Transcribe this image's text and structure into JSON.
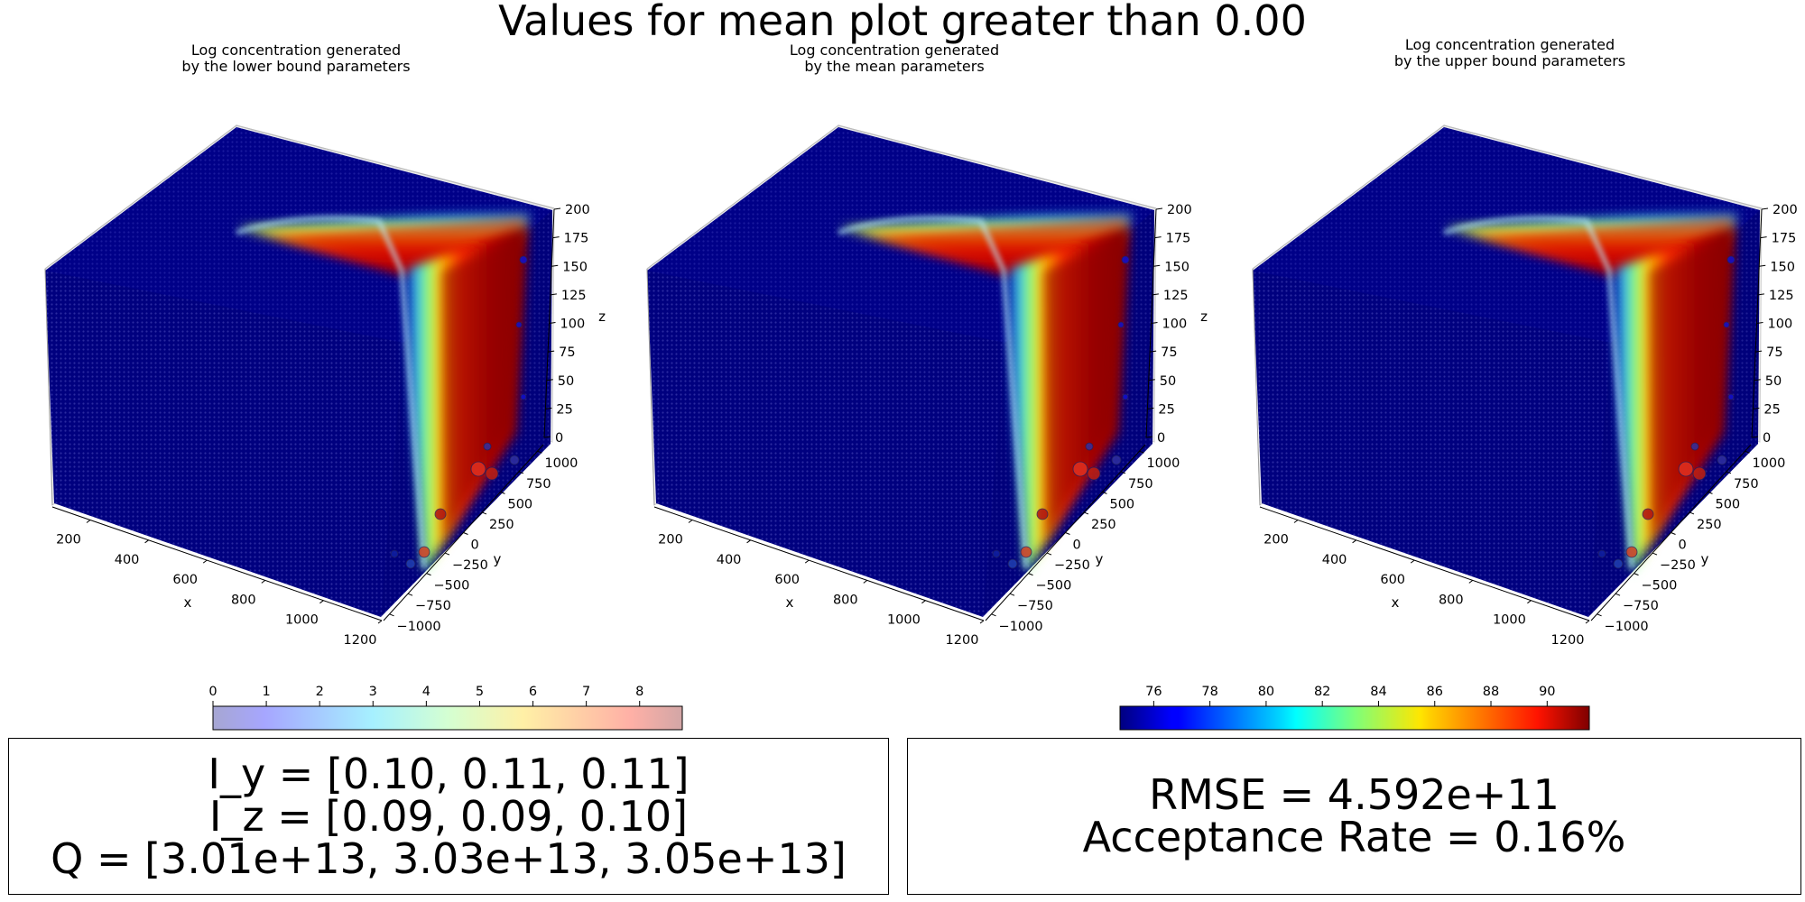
{
  "suptitle": "Values for mean plot greater than 0.00",
  "panels": [
    {
      "title_line1": "Log concentration generated",
      "title_line2": "by the lower bound parameters"
    },
    {
      "title_line1": "Log concentration generated",
      "title_line2": "by the mean parameters"
    },
    {
      "title_line1": "Log concentration generated",
      "title_line2": "by the upper bound parameters"
    }
  ],
  "stats_left": {
    "line1": "I_y = [0.10, 0.11, 0.11]",
    "line2": "I_z = [0.09, 0.09, 0.10]",
    "line3": "Q = [3.01e+13, 3.03e+13, 3.05e+13]"
  },
  "stats_right": {
    "line1": "RMSE = 4.592e+11",
    "line2": "Acceptance Rate = 0.16%"
  },
  "chart_data": {
    "type": "scatter3d",
    "colormap": "jet",
    "axes": {
      "x": {
        "label": "x",
        "ticks": [
          200,
          400,
          600,
          800,
          1000,
          1200
        ]
      },
      "y": {
        "label": "y",
        "ticks": [
          -1000,
          -750,
          -500,
          -250,
          0,
          250,
          500,
          750,
          1000
        ]
      },
      "z": {
        "label": "z",
        "ticks": [
          0,
          25,
          50,
          75,
          100,
          125,
          150,
          175,
          200
        ]
      }
    },
    "colorbars": [
      {
        "ticks": [
          0,
          1,
          2,
          3,
          4,
          5,
          6,
          7,
          8
        ],
        "range": [
          0,
          8.8
        ],
        "faded": true
      },
      {
        "ticks": [
          76,
          78,
          80,
          82,
          84,
          86,
          88,
          90
        ],
        "range": [
          74.8,
          91.5
        ],
        "faded": false
      }
    ]
  }
}
